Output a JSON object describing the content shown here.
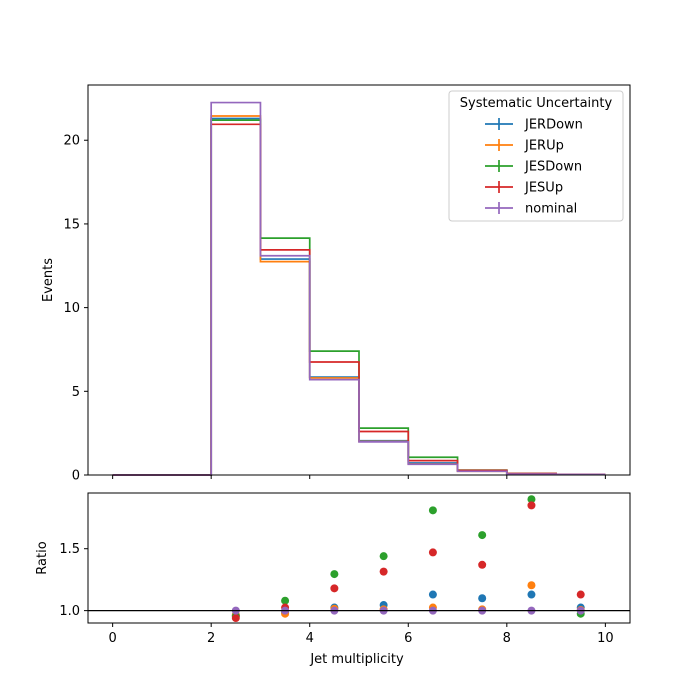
{
  "chart_data": [
    {
      "type": "line",
      "drawstyle": "steps",
      "ylabel": "Events",
      "xlim": [
        -0.5,
        10.5
      ],
      "ylim": [
        0,
        23.3
      ],
      "yticks": [
        0,
        5,
        10,
        15,
        20
      ],
      "xticks": [
        0,
        2,
        4,
        6,
        8,
        10
      ],
      "bin_edges": [
        0,
        1,
        2,
        3,
        4,
        5,
        6,
        7,
        8,
        9,
        10
      ],
      "legend_title": "Systematic Uncertainty",
      "legend_position": "upper right",
      "series": [
        {
          "name": "JERDown",
          "color": "#1f77b4",
          "values": [
            0,
            0,
            21.3,
            12.9,
            5.85,
            2.05,
            0.72,
            0.24,
            0.06,
            0.04
          ]
        },
        {
          "name": "JERUp",
          "color": "#ff7f0e",
          "values": [
            0,
            0,
            21.45,
            12.75,
            5.8,
            2.0,
            0.65,
            0.22,
            0.06,
            0.04
          ]
        },
        {
          "name": "JESDown",
          "color": "#2ca02c",
          "values": [
            0,
            0,
            21.2,
            14.15,
            7.4,
            2.8,
            1.06,
            0.29,
            0.09,
            0.03
          ]
        },
        {
          "name": "JESUp",
          "color": "#d62728",
          "values": [
            0,
            0,
            20.95,
            13.45,
            6.75,
            2.6,
            0.86,
            0.28,
            0.09,
            0.04
          ]
        },
        {
          "name": "nominal",
          "color": "#9467bd",
          "values": [
            0,
            0,
            22.25,
            13.1,
            5.7,
            1.98,
            0.64,
            0.22,
            0.05,
            0.03
          ]
        }
      ]
    },
    {
      "type": "scatter",
      "xlabel": "Jet multiplicity",
      "ylabel": "Ratio",
      "xlim": [
        -0.5,
        10.5
      ],
      "ylim": [
        0.9,
        1.95
      ],
      "yticks": [
        1.0,
        1.5
      ],
      "ytick_labels": [
        "1.0",
        "1.5"
      ],
      "xticks": [
        0,
        2,
        4,
        6,
        8,
        10
      ],
      "reference_line": 1.0,
      "x": [
        2.5,
        3.5,
        4.5,
        5.5,
        6.5,
        7.5,
        8.5,
        9.5
      ],
      "series": [
        {
          "name": "JERDown",
          "color": "#1f77b4",
          "values": [
            0.96,
            0.985,
            1.025,
            1.045,
            1.13,
            1.1,
            1.13,
            1.025
          ]
        },
        {
          "name": "JERUp",
          "color": "#ff7f0e",
          "values": [
            0.965,
            0.975,
            1.015,
            1.01,
            1.025,
            1.01,
            1.205,
            1.005
          ]
        },
        {
          "name": "JESDown",
          "color": "#2ca02c",
          "values": [
            0.955,
            1.08,
            1.295,
            1.44,
            1.81,
            1.61,
            1.9,
            0.975
          ]
        },
        {
          "name": "JESUp",
          "color": "#d62728",
          "values": [
            0.94,
            1.025,
            1.18,
            1.315,
            1.47,
            1.37,
            1.85,
            1.13
          ]
        },
        {
          "name": "nominal",
          "color": "#9467bd",
          "values": [
            1.0,
            1.0,
            1.0,
            1.0,
            1.0,
            1.0,
            1.0,
            1.0
          ]
        }
      ]
    }
  ]
}
